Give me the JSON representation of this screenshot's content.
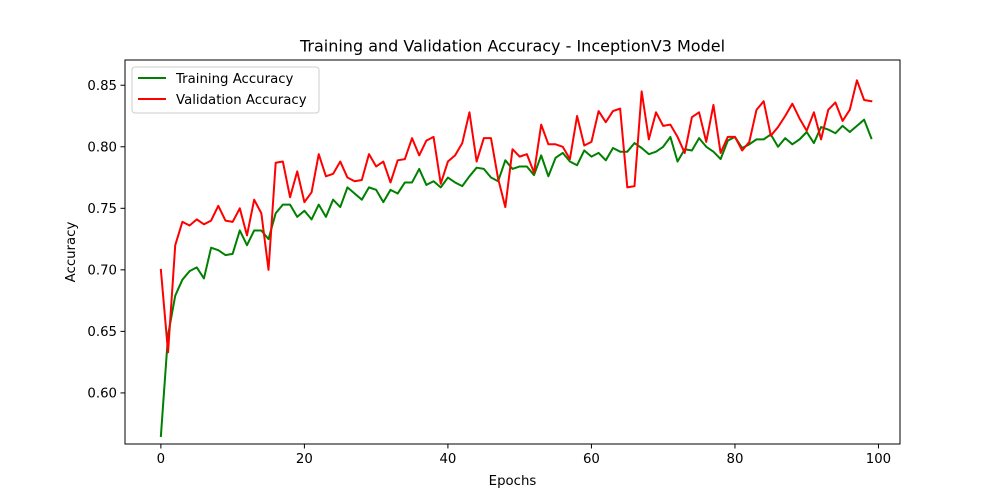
{
  "chart_data": {
    "type": "line",
    "title": "Training and Validation Accuracy - InceptionV3 Model",
    "xlabel": "Epochs",
    "ylabel": "Accuracy",
    "xlim": [
      -5,
      103
    ],
    "ylim": [
      0.5585,
      0.8705
    ],
    "xticks": [
      0,
      20,
      40,
      60,
      80,
      100
    ],
    "yticks": [
      0.6,
      0.65,
      0.7,
      0.75,
      0.8,
      0.85
    ],
    "xtick_labels": [
      "0",
      "20",
      "40",
      "60",
      "80",
      "100"
    ],
    "ytick_labels": [
      "0.60",
      "0.65",
      "0.70",
      "0.75",
      "0.80",
      "0.85"
    ],
    "grid": false,
    "legend_position": "upper-left",
    "x": [
      0,
      1,
      2,
      3,
      4,
      5,
      6,
      7,
      8,
      9,
      10,
      11,
      12,
      13,
      14,
      15,
      16,
      17,
      18,
      19,
      20,
      21,
      22,
      23,
      24,
      25,
      26,
      27,
      28,
      29,
      30,
      31,
      32,
      33,
      34,
      35,
      36,
      37,
      38,
      39,
      40,
      41,
      42,
      43,
      44,
      45,
      46,
      47,
      48,
      49,
      50,
      51,
      52,
      53,
      54,
      55,
      56,
      57,
      58,
      59,
      60,
      61,
      62,
      63,
      64,
      65,
      66,
      67,
      68,
      69,
      70,
      71,
      72,
      73,
      74,
      75,
      76,
      77,
      78,
      79,
      80,
      81,
      82,
      83,
      84,
      85,
      86,
      87,
      88,
      89,
      90,
      91,
      92,
      93,
      94,
      95,
      96,
      97,
      98,
      99
    ],
    "series": [
      {
        "name": "Training Accuracy",
        "color": "#008000",
        "values": [
          0.565,
          0.647,
          0.679,
          0.692,
          0.699,
          0.702,
          0.693,
          0.718,
          0.716,
          0.712,
          0.713,
          0.732,
          0.72,
          0.732,
          0.732,
          0.725,
          0.746,
          0.753,
          0.753,
          0.743,
          0.748,
          0.741,
          0.753,
          0.743,
          0.757,
          0.751,
          0.767,
          0.762,
          0.757,
          0.767,
          0.765,
          0.755,
          0.765,
          0.762,
          0.771,
          0.771,
          0.782,
          0.769,
          0.772,
          0.767,
          0.775,
          0.771,
          0.768,
          0.776,
          0.783,
          0.782,
          0.775,
          0.772,
          0.789,
          0.782,
          0.784,
          0.784,
          0.777,
          0.793,
          0.776,
          0.791,
          0.795,
          0.788,
          0.785,
          0.797,
          0.792,
          0.795,
          0.789,
          0.799,
          0.796,
          0.796,
          0.803,
          0.799,
          0.794,
          0.796,
          0.8,
          0.808,
          0.788,
          0.798,
          0.797,
          0.807,
          0.8,
          0.796,
          0.79,
          0.805,
          0.808,
          0.799,
          0.802,
          0.806,
          0.806,
          0.81,
          0.8,
          0.807,
          0.802,
          0.806,
          0.812,
          0.803,
          0.816,
          0.814,
          0.811,
          0.817,
          0.812,
          0.817,
          0.822,
          0.807
        ]
      },
      {
        "name": "Validation Accuracy",
        "color": "#ff0000",
        "values": [
          0.7,
          0.633,
          0.72,
          0.739,
          0.736,
          0.741,
          0.737,
          0.74,
          0.752,
          0.74,
          0.739,
          0.75,
          0.728,
          0.757,
          0.746,
          0.7,
          0.787,
          0.788,
          0.759,
          0.78,
          0.755,
          0.763,
          0.794,
          0.776,
          0.778,
          0.788,
          0.775,
          0.772,
          0.773,
          0.794,
          0.784,
          0.788,
          0.771,
          0.789,
          0.79,
          0.807,
          0.793,
          0.805,
          0.808,
          0.77,
          0.788,
          0.793,
          0.803,
          0.828,
          0.788,
          0.807,
          0.807,
          0.774,
          0.751,
          0.798,
          0.792,
          0.794,
          0.779,
          0.818,
          0.802,
          0.802,
          0.8,
          0.79,
          0.825,
          0.801,
          0.804,
          0.829,
          0.82,
          0.829,
          0.831,
          0.767,
          0.768,
          0.845,
          0.806,
          0.828,
          0.817,
          0.818,
          0.808,
          0.795,
          0.824,
          0.828,
          0.804,
          0.834,
          0.795,
          0.808,
          0.808,
          0.797,
          0.804,
          0.83,
          0.837,
          0.809,
          0.816,
          0.825,
          0.835,
          0.823,
          0.813,
          0.828,
          0.806,
          0.83,
          0.836,
          0.821,
          0.83,
          0.854,
          0.838,
          0.837
        ]
      }
    ]
  }
}
